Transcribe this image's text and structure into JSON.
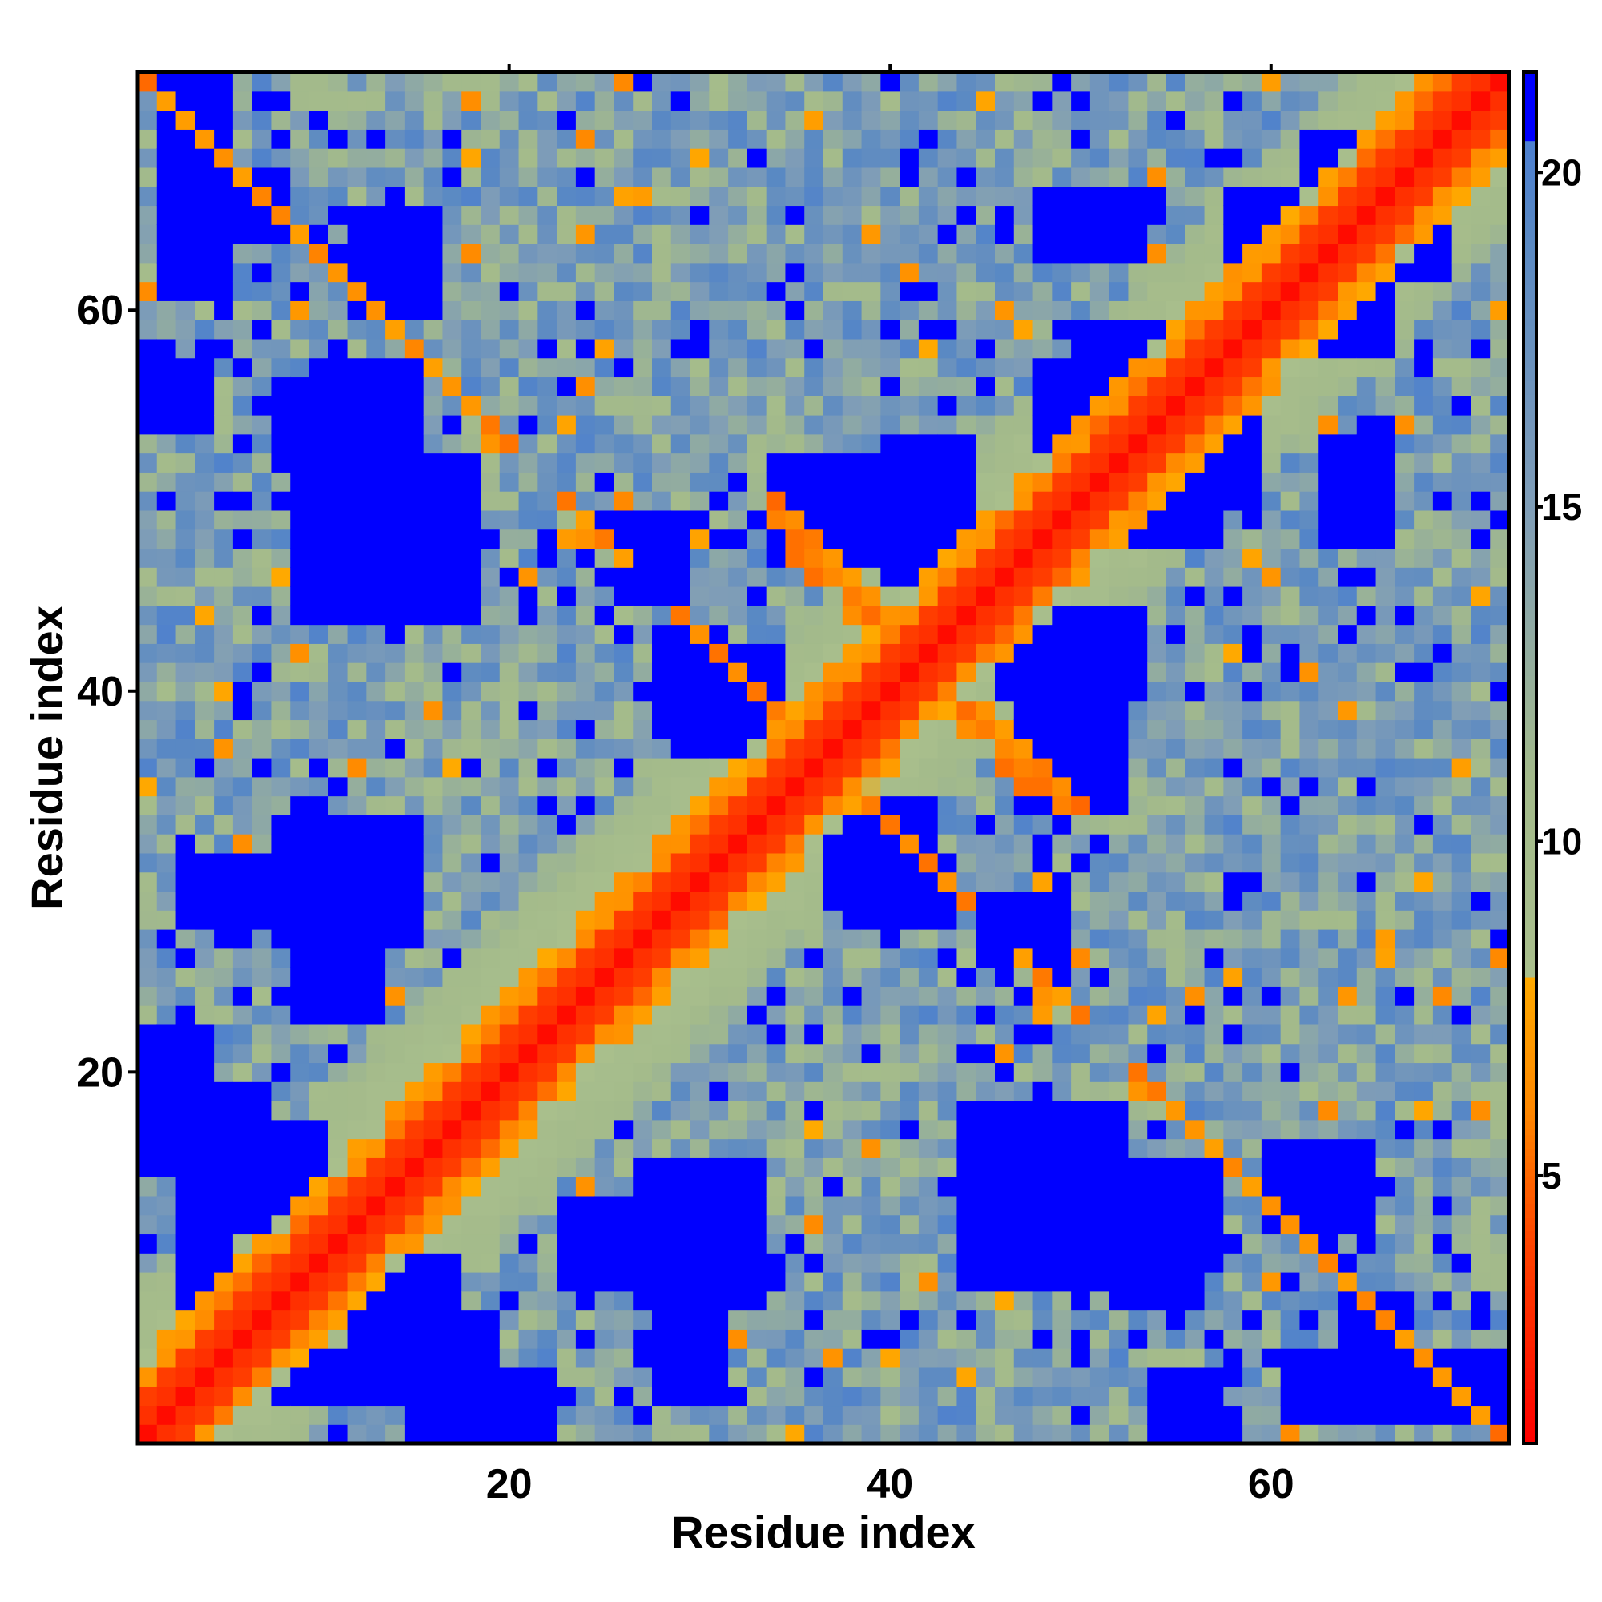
{
  "chart_data": {
    "type": "heatmap",
    "title": "",
    "xlabel": "Residue index",
    "ylabel": "Residue index",
    "n_residues": 72,
    "x_range": [
      1,
      72
    ],
    "y_range": [
      1,
      72
    ],
    "x_ticks": [
      {
        "value": 20,
        "label": "20"
      },
      {
        "value": 40,
        "label": "40"
      },
      {
        "value": 60,
        "label": "60"
      }
    ],
    "y_ticks": [
      {
        "value": 20,
        "label": "20"
      },
      {
        "value": 40,
        "label": "40"
      },
      {
        "value": 60,
        "label": "60"
      }
    ],
    "colorbar": {
      "range": [
        1,
        21.5
      ],
      "ticks": [
        {
          "value": 5,
          "label": "5"
        },
        {
          "value": 10,
          "label": "10"
        },
        {
          "value": 15,
          "label": "15"
        },
        {
          "value": 20,
          "label": "20"
        }
      ],
      "stops": [
        {
          "value": 1,
          "color": "#ff0000"
        },
        {
          "value": 4,
          "color": "#ff4400"
        },
        {
          "value": 6,
          "color": "#ff8800"
        },
        {
          "value": 8,
          "color": "#ffaa00"
        },
        {
          "value": 8.01,
          "color": "#a9bf8c"
        },
        {
          "value": 11,
          "color": "#a3ba8b"
        },
        {
          "value": 15,
          "color": "#7f9db7"
        },
        {
          "value": 19,
          "color": "#5a89c3"
        },
        {
          "value": 20.5,
          "color": "#4c7fd0"
        },
        {
          "value": 20.51,
          "color": "#0000ff"
        },
        {
          "value": 21.5,
          "color": "#0000ff"
        }
      ]
    },
    "matrix_description": "Symmetric pairwise residue distance map; red diagonal band (distance < ~4), orange near-diagonal and anti-diagonal contact strands, blue regions where distance exceeds the cutoff"
  }
}
